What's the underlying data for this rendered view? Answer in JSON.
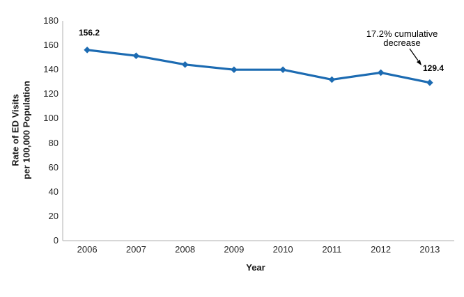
{
  "chart_data": {
    "type": "line",
    "title": "",
    "xlabel": "Year",
    "ylabel": "Rate of ED Visits per 100,000 Population",
    "ylabel_lines": [
      "Rate of ED Visits",
      "per 100,000 Population"
    ],
    "categories": [
      "2006",
      "2007",
      "2008",
      "2009",
      "2010",
      "2011",
      "2012",
      "2013"
    ],
    "series": [
      {
        "name": "Rate of ED visits per 100,000 population",
        "values": [
          156.2,
          151.4,
          144.2,
          140.0,
          140.0,
          131.9,
          137.6,
          129.4
        ]
      }
    ],
    "ylim": [
      0,
      180
    ],
    "yticks": [
      0,
      20,
      40,
      60,
      80,
      100,
      120,
      140,
      160,
      180
    ],
    "grid": false,
    "legend": "none",
    "marker": "diamond",
    "point_labels": [
      {
        "index": 0,
        "label": "156.2"
      },
      {
        "index": 7,
        "label": "129.4"
      }
    ],
    "annotation": {
      "text": "17.2% cumulative decrease"
    },
    "colors": {
      "line": "#1C6BB2",
      "axis": "#BFBFBF",
      "tick_text": "#262626",
      "label_text": "#000000",
      "annotation_arrow": "#000000",
      "background": "#FFFFFF"
    }
  }
}
